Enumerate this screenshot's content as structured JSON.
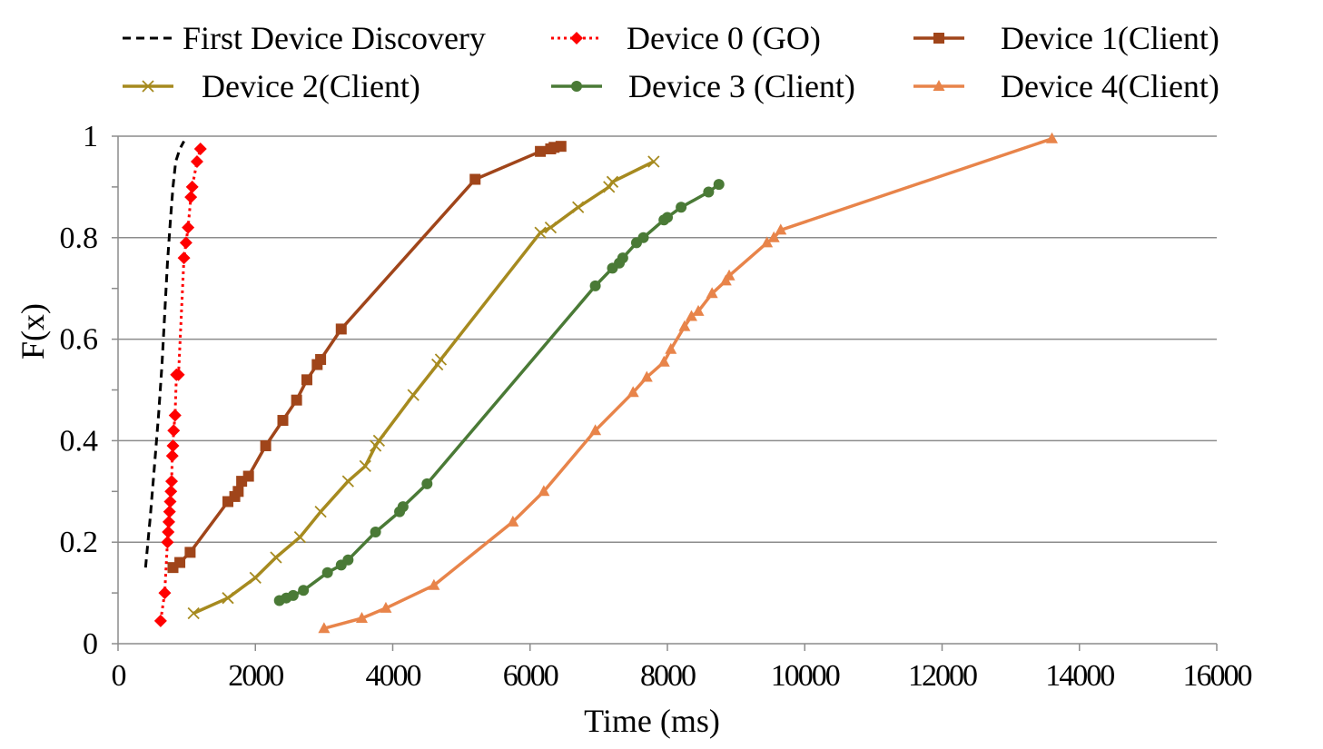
{
  "chart_data": {
    "type": "line",
    "title": "",
    "xlabel": "Time (ms)",
    "ylabel": "F(x)",
    "xlim": [
      0,
      16000
    ],
    "ylim": [
      0,
      1
    ],
    "x_ticks": [
      "0",
      "2000",
      "4000",
      "6000",
      "8000",
      "10000",
      "12000",
      "14000",
      "16000"
    ],
    "y_ticks": [
      "0",
      "0.2",
      "0.4",
      "0.6",
      "0.8",
      "1"
    ],
    "grid": "horizontal",
    "legend_position": "top",
    "series": [
      {
        "name": "First Device Discovery",
        "color": "#000000",
        "style": "dashed",
        "marker": "none",
        "x": [
          400,
          470,
          530,
          590,
          640,
          680,
          720,
          760,
          800,
          840,
          900,
          960
        ],
        "y": [
          0.15,
          0.25,
          0.35,
          0.45,
          0.55,
          0.65,
          0.75,
          0.83,
          0.9,
          0.95,
          0.975,
          0.99
        ]
      },
      {
        "name": "Device 0 (GO)",
        "color": "#ff0000",
        "style": "dotted",
        "marker": "diamond",
        "x": [
          620,
          680,
          720,
          730,
          740,
          750,
          760,
          770,
          780,
          790,
          800,
          810,
          830,
          850,
          880,
          960,
          990,
          1020,
          1060,
          1080,
          1150,
          1200
        ],
        "y": [
          0.045,
          0.1,
          0.2,
          0.22,
          0.24,
          0.26,
          0.28,
          0.3,
          0.32,
          0.37,
          0.39,
          0.42,
          0.45,
          0.53,
          0.53,
          0.76,
          0.79,
          0.82,
          0.88,
          0.9,
          0.95,
          0.975
        ]
      },
      {
        "name": "Device 1(Client)",
        "color": "#a0451a",
        "style": "solid",
        "marker": "square",
        "x": [
          800,
          900,
          1050,
          1600,
          1700,
          1750,
          1800,
          1900,
          2150,
          2400,
          2600,
          2750,
          2900,
          2950,
          3250,
          5200,
          6150,
          6300,
          6350,
          6450
        ],
        "y": [
          0.15,
          0.16,
          0.18,
          0.28,
          0.29,
          0.3,
          0.32,
          0.33,
          0.39,
          0.44,
          0.48,
          0.52,
          0.55,
          0.56,
          0.62,
          0.915,
          0.97,
          0.975,
          0.978,
          0.98
        ]
      },
      {
        "name": "Device 2(Client)",
        "color": "#a68a1f",
        "style": "solid",
        "marker": "x",
        "x": [
          1100,
          1600,
          2000,
          2300,
          2650,
          2950,
          3350,
          3600,
          3750,
          3800,
          4300,
          4650,
          4700,
          6150,
          6300,
          6700,
          7150,
          7200,
          7800
        ],
        "y": [
          0.06,
          0.09,
          0.13,
          0.17,
          0.21,
          0.26,
          0.32,
          0.35,
          0.39,
          0.4,
          0.49,
          0.55,
          0.56,
          0.81,
          0.82,
          0.86,
          0.9,
          0.91,
          0.95
        ]
      },
      {
        "name": "Device 3 (Client)",
        "color": "#4a7a36",
        "style": "solid",
        "marker": "circle",
        "x": [
          2350,
          2450,
          2550,
          2700,
          3050,
          3250,
          3350,
          3750,
          4100,
          4150,
          4500,
          6950,
          7200,
          7300,
          7350,
          7550,
          7650,
          7950,
          8000,
          8200,
          8600,
          8750
        ],
        "y": [
          0.085,
          0.09,
          0.095,
          0.105,
          0.14,
          0.155,
          0.165,
          0.22,
          0.26,
          0.27,
          0.315,
          0.705,
          0.74,
          0.75,
          0.76,
          0.79,
          0.8,
          0.835,
          0.84,
          0.86,
          0.89,
          0.905
        ]
      },
      {
        "name": "Device 4(Client)",
        "color": "#e8844a",
        "style": "solid",
        "marker": "triangle",
        "x": [
          3000,
          3550,
          3900,
          4600,
          5750,
          6200,
          6950,
          7500,
          7700,
          7950,
          8050,
          8250,
          8350,
          8450,
          8650,
          8850,
          8900,
          9450,
          9550,
          9650,
          13600
        ],
        "y": [
          0.03,
          0.05,
          0.07,
          0.115,
          0.24,
          0.3,
          0.42,
          0.495,
          0.525,
          0.555,
          0.58,
          0.625,
          0.645,
          0.655,
          0.69,
          0.715,
          0.725,
          0.79,
          0.8,
          0.815,
          0.995
        ]
      }
    ]
  }
}
